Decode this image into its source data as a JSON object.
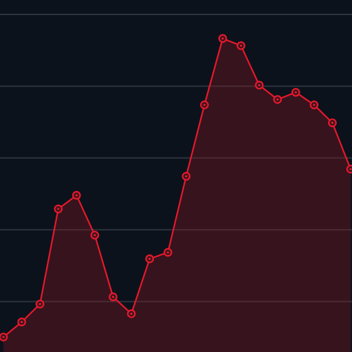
{
  "colors": {
    "background": "#0c121b",
    "line": "#e8192c",
    "area_fill": "#3a141e",
    "grid": "#2b333d",
    "grid_over_area": "#4a2a33"
  },
  "chart_data": {
    "type": "area",
    "title": "",
    "xlabel": "",
    "ylabel": "",
    "x": [
      0,
      1,
      2,
      3,
      4,
      5,
      6,
      7,
      8,
      9,
      10,
      11,
      12,
      13,
      14,
      15,
      16,
      17,
      18,
      19
    ],
    "series": [
      {
        "values": [
          10.1,
          14.3,
          19.3,
          45.8,
          49.6,
          38.5,
          21.3,
          16.6,
          31.9,
          33.7,
          54.9,
          74.8,
          93.3,
          91.3,
          80.3,
          76.3,
          78.3,
          74.8,
          69.8,
          56.9
        ]
      }
    ],
    "ylim": [
      0,
      100
    ],
    "grid": true,
    "gridlines": [
      20,
      40,
      60,
      80,
      100
    ],
    "legend": "none",
    "markers": "circle"
  }
}
